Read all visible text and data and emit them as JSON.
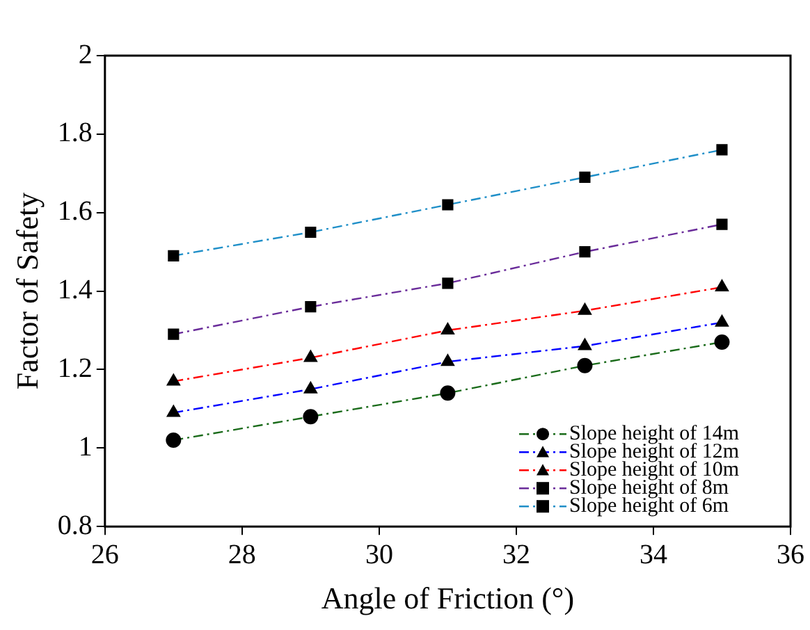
{
  "chart_data": {
    "type": "line",
    "xlabel": "Angle of Friction (°)",
    "ylabel": "Factor of Safety",
    "x": [
      27,
      29,
      31,
      33,
      35
    ],
    "series": [
      {
        "name": "Slope height of 14m",
        "color": "#1a6b1a",
        "marker": "circle",
        "values": [
          1.02,
          1.08,
          1.14,
          1.21,
          1.27
        ]
      },
      {
        "name": "Slope height of 12m",
        "color": "#0000ff",
        "marker": "triangle",
        "values": [
          1.09,
          1.15,
          1.22,
          1.26,
          1.32
        ]
      },
      {
        "name": "Slope height of 10m",
        "color": "#ff0000",
        "marker": "triangle",
        "values": [
          1.17,
          1.23,
          1.3,
          1.35,
          1.41
        ]
      },
      {
        "name": "Slope height of 8m",
        "color": "#6a2c9a",
        "marker": "square",
        "values": [
          1.29,
          1.36,
          1.42,
          1.5,
          1.57
        ]
      },
      {
        "name": "Slope height of 6m",
        "color": "#1f8fc8",
        "marker": "square",
        "values": [
          1.49,
          1.55,
          1.62,
          1.69,
          1.76
        ]
      }
    ],
    "xlim": [
      26,
      36
    ],
    "xticks": [
      26,
      28,
      30,
      32,
      34,
      36
    ],
    "ylim": [
      0.8,
      2
    ],
    "yticks": [
      0.8,
      1,
      1.2,
      1.4,
      1.6,
      1.8,
      2
    ],
    "grid": false,
    "legend": "bottom right",
    "line_style": "dashed"
  }
}
